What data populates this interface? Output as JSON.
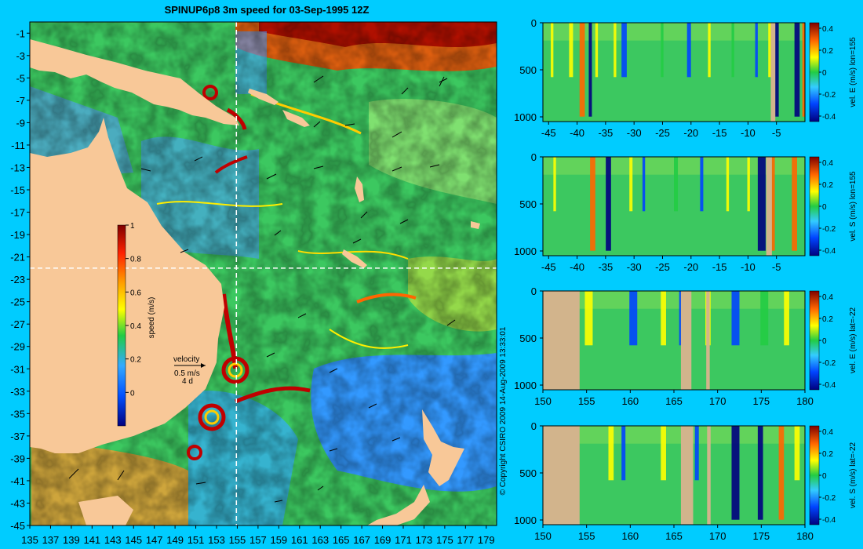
{
  "title": "SPINUP6p8 3m speed for 03-Sep-1995 12Z",
  "copyright": "© Copyright CSIRO 2009  14-Aug-2009 13:33:01",
  "colors": {
    "background": "#00ccff",
    "land": "#f8c898",
    "section_land": "#d2b48c",
    "section_guides": "#ffffff"
  },
  "chart_data": [
    {
      "type": "heatmap",
      "name": "map",
      "title": "SPINUP6p8 3m speed for 03-Sep-1995 12Z",
      "x_ticks": [
        "135",
        "137",
        "139",
        "141",
        "143",
        "145",
        "147",
        "149",
        "151",
        "153",
        "155",
        "157",
        "159",
        "161",
        "163",
        "165",
        "167",
        "169",
        "171",
        "173",
        "175",
        "177",
        "179"
      ],
      "y_ticks": [
        "-1",
        "-3",
        "-5",
        "-7",
        "-9",
        "-11",
        "-13",
        "-15",
        "-17",
        "-19",
        "-21",
        "-23",
        "-25",
        "-27",
        "-29",
        "-31",
        "-33",
        "-35",
        "-37",
        "-39",
        "-41",
        "-43",
        "-45"
      ],
      "xlim": [
        135,
        180
      ],
      "ylim": [
        -45,
        0
      ],
      "guide_lon": 155,
      "guide_lat": -22,
      "colorbar": {
        "label": "speed (m/s)",
        "ticks": [
          "1",
          "0.8",
          "0.6",
          "0.4",
          "0.2",
          "0"
        ],
        "range": [
          -0.2,
          1
        ]
      },
      "vector_legend": {
        "title": "velocity",
        "speed": "0.5 m/s",
        "duration": "4 d"
      }
    },
    {
      "type": "heatmap",
      "name": "section-1",
      "x_ticks": [
        "-45",
        "-40",
        "-35",
        "-30",
        "-25",
        "-20",
        "-15",
        "-10",
        "-5"
      ],
      "y_ticks": [
        "0",
        "500",
        "1000"
      ],
      "xlim": [
        -46,
        0
      ],
      "ylim": [
        1050,
        0
      ],
      "colorbar": {
        "label": "vel. E (m/s) lon=155",
        "ticks": [
          "0.4",
          "0.2",
          "0",
          "-0.2",
          "-0.4"
        ],
        "range": [
          -0.45,
          0.45
        ]
      }
    },
    {
      "type": "heatmap",
      "name": "section-2",
      "x_ticks": [
        "-45",
        "-40",
        "-35",
        "-30",
        "-25",
        "-20",
        "-15",
        "-10",
        "-5"
      ],
      "y_ticks": [
        "0",
        "500",
        "1000"
      ],
      "xlim": [
        -46,
        0
      ],
      "ylim": [
        1050,
        0
      ],
      "colorbar": {
        "label": "vel. S (m/s) lon=155",
        "ticks": [
          "0.4",
          "0.2",
          "0",
          "-0.2",
          "-0.4"
        ],
        "range": [
          -0.45,
          0.45
        ]
      }
    },
    {
      "type": "heatmap",
      "name": "section-3",
      "x_ticks": [
        "150",
        "155",
        "160",
        "165",
        "170",
        "175",
        "180"
      ],
      "y_ticks": [
        "0",
        "500",
        "1000"
      ],
      "xlim": [
        150,
        180
      ],
      "ylim": [
        1050,
        0
      ],
      "colorbar": {
        "label": "vel. E (m/s) lat=-22",
        "ticks": [
          "0.4",
          "0.2",
          "0",
          "-0.2",
          "-0.4"
        ],
        "range": [
          -0.45,
          0.45
        ]
      }
    },
    {
      "type": "heatmap",
      "name": "section-4",
      "x_ticks": [
        "150",
        "155",
        "160",
        "165",
        "170",
        "175",
        "180"
      ],
      "y_ticks": [
        "0",
        "500",
        "1000"
      ],
      "xlim": [
        150,
        180
      ],
      "ylim": [
        1050,
        0
      ],
      "colorbar": {
        "label": "vel. S (m/s) lat=-22",
        "ticks": [
          "0.4",
          "0.2",
          "0",
          "-0.2",
          "-0.4"
        ],
        "range": [
          -0.45,
          0.45
        ]
      }
    }
  ]
}
